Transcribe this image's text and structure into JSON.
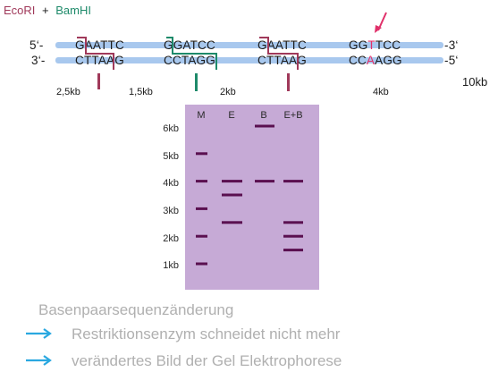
{
  "legend": {
    "enzyme1": "EcoRI",
    "plus": "+",
    "enzyme2": "BamHI",
    "color1": "#a0395a",
    "color2": "#1e8a6a"
  },
  "dna": {
    "end5_top": "5‘-",
    "end3_top": "-3‘",
    "end3_bottom": "3‘-",
    "end5_bottom": "-5‘",
    "sites": [
      {
        "top": "GAATTC",
        "bottom": "CTTAAG"
      },
      {
        "top": "GGATCC",
        "bottom": "CCTAGG"
      },
      {
        "top": "GAATTC",
        "bottom": "CTTAAG"
      },
      {
        "top_pre": "GG",
        "top_mut": "T",
        "top_post": "TCC",
        "bottom_pre": "CC",
        "bottom_mut": "A",
        "bottom_post": "AGG"
      }
    ],
    "fragment_labels": [
      "2,5kb",
      "1,5kb",
      "2kb",
      "4kb"
    ],
    "total_length": "10kb",
    "mutation_color": "#e0306a",
    "strand_color": "#a8c8ee"
  },
  "gel": {
    "background": "#c6aad6",
    "band_color": "#5a1050",
    "lanes": [
      "M",
      "E",
      "B",
      "E+B"
    ],
    "marker_labels": [
      "6kb",
      "5kb",
      "4kb",
      "3kb",
      "2kb",
      "1kb"
    ],
    "lane_bands_kb": {
      "M": [
        5,
        4,
        3,
        2,
        1
      ],
      "E": [
        4,
        3.5,
        2.5
      ],
      "B": [
        6,
        4
      ],
      "E+B": [
        4,
        2.5,
        2,
        1.5
      ]
    }
  },
  "notes": {
    "heading": "Basenpaarsequenzänderung",
    "bullet1": "Restriktionsenzym schneidet nicht mehr",
    "bullet2": "verändertes Bild der Gel Elektrophorese",
    "arrow_color": "#2aa8e0"
  }
}
